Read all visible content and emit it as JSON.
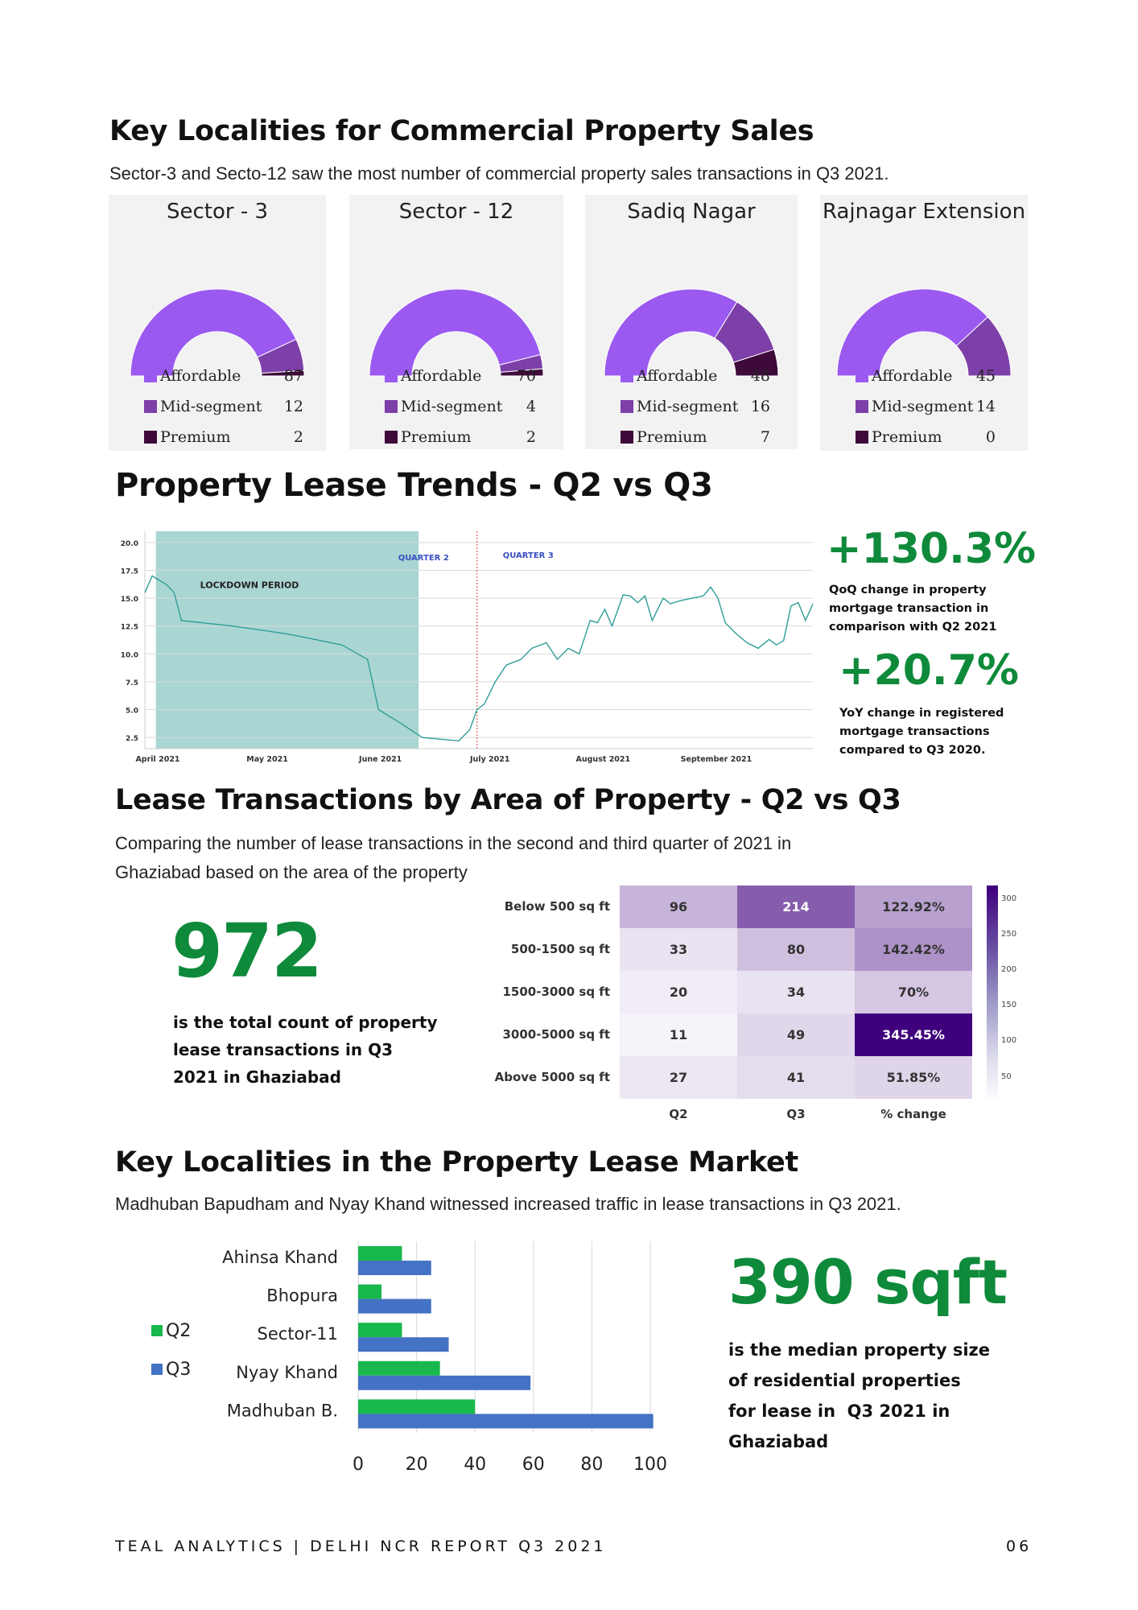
{
  "section1": {
    "title": "Key Localities for Commercial Property Sales",
    "subtitle": "Sector-3 and Secto-12 saw the most number of commercial property sales transactions in Q3 2021."
  },
  "colors": {
    "affordable": "#9b59f0",
    "mid": "#7d3fa8",
    "premium": "#3d0a3a",
    "green": "#0e8a3a",
    "q2": "#18b84c",
    "q3": "#4472c4",
    "teal": "#2f9e98"
  },
  "donuts": [
    {
      "title": "Sector - 3",
      "items": [
        {
          "label": "Affordable",
          "value": "87"
        },
        {
          "label": "Mid-segment",
          "value": "12"
        },
        {
          "label": "Premium",
          "value": "2"
        }
      ]
    },
    {
      "title": "Sector - 12",
      "items": [
        {
          "label": "Affordable",
          "value": "70"
        },
        {
          "label": "Mid-segment",
          "value": "4"
        },
        {
          "label": "Premium",
          "value": "2"
        }
      ]
    },
    {
      "title": "Sadiq Nagar",
      "items": [
        {
          "label": "Affordable",
          "value": "48"
        },
        {
          "label": "Mid-segment",
          "value": "16"
        },
        {
          "label": "Premium",
          "value": "7"
        }
      ]
    },
    {
      "title": "Rajnagar Extension",
      "items": [
        {
          "label": "Affordable",
          "value": "45"
        },
        {
          "label": "Mid-segment",
          "value": "14"
        },
        {
          "label": "Premium",
          "value": "0"
        }
      ]
    }
  ],
  "section2": {
    "title": "Property Lease Trends - Q2 vs Q3",
    "stat1": {
      "value": "+130.3%",
      "line1": "QoQ change in property",
      "line2": "mortgage transaction in",
      "line3": "comparison with Q2 2021"
    },
    "stat2": {
      "value": "+20.7%",
      "line1": "YoY change in registered",
      "line2": "mortgage transactions",
      "line3": "compared to Q3 2020."
    }
  },
  "section3": {
    "title": "Lease Transactions by Area of Property - Q2 vs Q3",
    "line1": "Comparing the number of lease transactions in the second and third quarter of 2021 in",
    "line2": "Ghaziabad based on the area of the property",
    "stat": {
      "value": "972",
      "line1": "is the total count of property",
      "line2": "lease transactions in Q3",
      "line3": "2021 in Ghaziabad"
    }
  },
  "section4": {
    "title": "Key Localities in the Property Lease Market",
    "subtitle": "Madhuban Bapudham and Nyay Khand witnessed increased traffic in lease transactions in Q3 2021.",
    "stat": {
      "value": "390 sqft",
      "line1": "is the median property size",
      "line2": "of residential properties",
      "line3": "for lease in  Q3 2021 in",
      "line4": "Ghaziabad"
    }
  },
  "footer": {
    "left": "TEAL ANALYTICS | DELHI NCR REPORT Q3 2021",
    "right": "06"
  },
  "chart_data": [
    {
      "type": "pie",
      "title": "Sector - 3",
      "categories": [
        "Affordable",
        "Mid-segment",
        "Premium"
      ],
      "values": [
        87,
        12,
        2
      ]
    },
    {
      "type": "pie",
      "title": "Sector - 12",
      "categories": [
        "Affordable",
        "Mid-segment",
        "Premium"
      ],
      "values": [
        70,
        4,
        2
      ]
    },
    {
      "type": "pie",
      "title": "Sadiq Nagar",
      "categories": [
        "Affordable",
        "Mid-segment",
        "Premium"
      ],
      "values": [
        48,
        16,
        7
      ]
    },
    {
      "type": "pie",
      "title": "Rajnagar Extension",
      "categories": [
        "Affordable",
        "Mid-segment",
        "Premium"
      ],
      "values": [
        45,
        14,
        0
      ]
    },
    {
      "type": "line",
      "title": "",
      "x_ticks": [
        "April 2021",
        "May 2021",
        "June 2021",
        "July 2021",
        "August 2021",
        "September 2021"
      ],
      "y_ticks": [
        "2.5",
        "5.0",
        "7.5",
        "10.0",
        "12.5",
        "15.0",
        "17.5",
        "20.0"
      ],
      "ylim": [
        1.5,
        21
      ],
      "xlim": [
        "2021-04-01",
        "2021-10-01"
      ],
      "annotations": {
        "shade": {
          "label": "LOCKDOWN PERIOD",
          "from": "2021-04-04",
          "to": "2021-06-15"
        },
        "quarter2": "QUARTER 2",
        "quarter3": "QUARTER 3",
        "divider": "2021-07-01"
      },
      "series": [
        {
          "values": [
            [
              "2021-04-01",
              15.5
            ],
            [
              "2021-04-03",
              17.0
            ],
            [
              "2021-04-07",
              16.2
            ],
            [
              "2021-04-09",
              15.5
            ],
            [
              "2021-04-11",
              13.0
            ],
            [
              "2021-04-25",
              12.5
            ],
            [
              "2021-05-10",
              11.8
            ],
            [
              "2021-05-25",
              10.8
            ],
            [
              "2021-06-01",
              9.5
            ],
            [
              "2021-06-04",
              5.0
            ],
            [
              "2021-06-10",
              3.8
            ],
            [
              "2021-06-16",
              2.5
            ],
            [
              "2021-06-26",
              2.2
            ],
            [
              "2021-06-29",
              3.2
            ],
            [
              "2021-07-01",
              5.0
            ],
            [
              "2021-07-03",
              5.5
            ],
            [
              "2021-07-06",
              7.5
            ],
            [
              "2021-07-09",
              9.0
            ],
            [
              "2021-07-13",
              9.5
            ],
            [
              "2021-07-16",
              10.5
            ],
            [
              "2021-07-20",
              11.0
            ],
            [
              "2021-07-23",
              9.5
            ],
            [
              "2021-07-26",
              10.5
            ],
            [
              "2021-07-29",
              10.0
            ],
            [
              "2021-08-01",
              13.0
            ],
            [
              "2021-08-03",
              12.8
            ],
            [
              "2021-08-05",
              14.0
            ],
            [
              "2021-08-07",
              12.5
            ],
            [
              "2021-08-10",
              15.3
            ],
            [
              "2021-08-12",
              15.2
            ],
            [
              "2021-08-14",
              14.6
            ],
            [
              "2021-08-16",
              15.2
            ],
            [
              "2021-08-18",
              13.0
            ],
            [
              "2021-08-21",
              15.0
            ],
            [
              "2021-08-23",
              14.5
            ],
            [
              "2021-08-26",
              14.8
            ],
            [
              "2021-08-29",
              15.0
            ],
            [
              "2021-09-01",
              15.2
            ],
            [
              "2021-09-03",
              16.0
            ],
            [
              "2021-09-05",
              15.0
            ],
            [
              "2021-09-07",
              12.8
            ],
            [
              "2021-09-10",
              11.8
            ],
            [
              "2021-09-13",
              11.0
            ],
            [
              "2021-09-16",
              10.5
            ],
            [
              "2021-09-19",
              11.3
            ],
            [
              "2021-09-21",
              10.8
            ],
            [
              "2021-09-23",
              11.2
            ],
            [
              "2021-09-25",
              14.3
            ],
            [
              "2021-09-27",
              14.6
            ],
            [
              "2021-09-29",
              13.0
            ],
            [
              "2021-10-01",
              14.5
            ]
          ]
        }
      ]
    },
    {
      "type": "heatmap",
      "title": "",
      "rows": [
        "Below 500 sq ft",
        "500-1500 sq ft",
        "1500-3000 sq ft",
        "3000-5000 sq ft",
        "Above 5000 sq ft"
      ],
      "columns": [
        "Q2",
        "Q3",
        "% change"
      ],
      "values": [
        [
          "96",
          "214",
          "122.92%"
        ],
        [
          "33",
          "80",
          "142.42%"
        ],
        [
          "20",
          "34",
          "70%"
        ],
        [
          "11",
          "49",
          "345.45%"
        ],
        [
          "27",
          "41",
          "51.85%"
        ]
      ],
      "colorbar_ticks": [
        "300",
        "250",
        "200",
        "150",
        "100",
        "50"
      ]
    },
    {
      "type": "bar",
      "title": "",
      "orientation": "horizontal",
      "categories": [
        "Ahinsa Khand",
        "Bhopura",
        "Sector-11",
        "Nyay Khand",
        "Madhuban B."
      ],
      "series": [
        {
          "name": "Q2",
          "values": [
            15,
            8,
            15,
            28,
            40
          ]
        },
        {
          "name": "Q3",
          "values": [
            25,
            25,
            31,
            59,
            101
          ]
        }
      ],
      "xlim": [
        0,
        100
      ],
      "x_ticks": [
        "0",
        "20",
        "40",
        "60",
        "80",
        "100"
      ]
    }
  ]
}
